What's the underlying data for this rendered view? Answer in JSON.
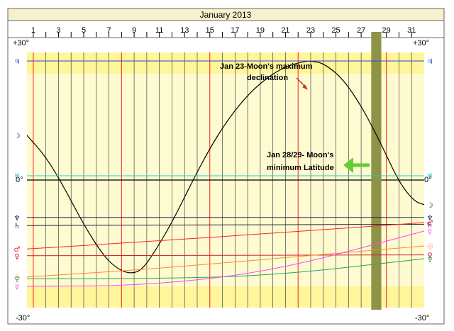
{
  "chart_data": {
    "type": "line",
    "title": "January 2013",
    "x_ticks": [
      "1",
      "3",
      "5",
      "7",
      "9",
      "11",
      "13",
      "15",
      "17",
      "19",
      "21",
      "23",
      "25",
      "27",
      "29",
      "31"
    ],
    "xlim": [
      0.5,
      32.0
    ],
    "ylim": [
      -30,
      30
    ],
    "y_top_label": "+30°",
    "y_bottom_label": "-30°",
    "y_zero_label": "0°",
    "grid": true,
    "highlight_band": {
      "from": 27.8,
      "to": 28.6,
      "color": "#8f9348"
    },
    "zero_line_value": 0,
    "series": [
      {
        "glyph": "☽",
        "color": "#000000",
        "points": [
          [
            0.5,
            10.5
          ],
          [
            2.0,
            5.5
          ],
          [
            3.5,
            -2
          ],
          [
            5.0,
            -10.5
          ],
          [
            6.5,
            -17.5
          ],
          [
            7.5,
            -20.5
          ],
          [
            8.5,
            -22
          ],
          [
            9.5,
            -21.5
          ],
          [
            10.5,
            -17.5
          ],
          [
            12.0,
            -10
          ],
          [
            13.5,
            -1
          ],
          [
            15.0,
            7.5
          ],
          [
            16.5,
            14.5
          ],
          [
            18.0,
            20
          ],
          [
            19.5,
            24
          ],
          [
            21.0,
            26.7
          ],
          [
            22.5,
            27.9
          ],
          [
            23.0,
            28.0
          ],
          [
            24.0,
            27.5
          ],
          [
            25.5,
            24
          ],
          [
            27.0,
            17.5
          ],
          [
            28.5,
            9
          ],
          [
            30.0,
            -0.5
          ],
          [
            31.2,
            -5
          ],
          [
            32.0,
            -5.8
          ]
        ]
      },
      {
        "glyph": "♃",
        "color": "#3344dd",
        "points": [
          [
            0.5,
            28.0
          ],
          [
            32.0,
            28.0
          ]
        ]
      },
      {
        "glyph": "♅",
        "color": "#22cccc",
        "points": [
          [
            0.5,
            1.0
          ],
          [
            32.0,
            1.0
          ]
        ]
      },
      {
        "glyph": "♆",
        "color": "#222266",
        "points": [
          [
            0.5,
            -8.8
          ],
          [
            32.0,
            -8.8
          ]
        ]
      },
      {
        "glyph": "♄",
        "color": "#222244",
        "points": [
          [
            0.5,
            -10.7
          ],
          [
            32.0,
            -10.4
          ]
        ]
      },
      {
        "glyph": "♂",
        "color": "#ff2222",
        "points": [
          [
            0.5,
            -16.2
          ],
          [
            10.0,
            -14.5
          ],
          [
            20.0,
            -12.5
          ],
          [
            32.0,
            -10.0
          ]
        ]
      },
      {
        "glyph": "♀",
        "color": "#cc2222",
        "points": [
          [
            0.5,
            -17.8
          ],
          [
            32.0,
            -17.6
          ]
        ]
      },
      {
        "glyph": "☉",
        "color": "#ff8833",
        "points": [
          [
            0.5,
            -22.8
          ],
          [
            10.0,
            -21.0
          ],
          [
            20.0,
            -18.5
          ],
          [
            32.0,
            -15.5
          ]
        ]
      },
      {
        "glyph": "♀",
        "color": "#22aa55",
        "points": [
          [
            0.5,
            -23.2
          ],
          [
            10.0,
            -23.2
          ],
          [
            20.0,
            -22.5
          ],
          [
            32.0,
            -18.5
          ]
        ]
      },
      {
        "glyph": "☿",
        "color": "#ff44ff",
        "points": [
          [
            0.5,
            -25.0
          ],
          [
            10.0,
            -24.8
          ],
          [
            20.0,
            -21.5
          ],
          [
            32.0,
            -12.0
          ]
        ]
      }
    ],
    "annotations": [
      {
        "lines": [
          "Jan 23-Moon's maximum",
          "declination"
        ],
        "arrow_color": "#cc3322",
        "x": 23.0,
        "y": 28.0
      },
      {
        "lines": [
          "Jan 28/29- Moon's",
          "minimum Latitude"
        ],
        "arrow_color": "#66cc33",
        "x": 28.2,
        "y": 2.0
      }
    ]
  }
}
